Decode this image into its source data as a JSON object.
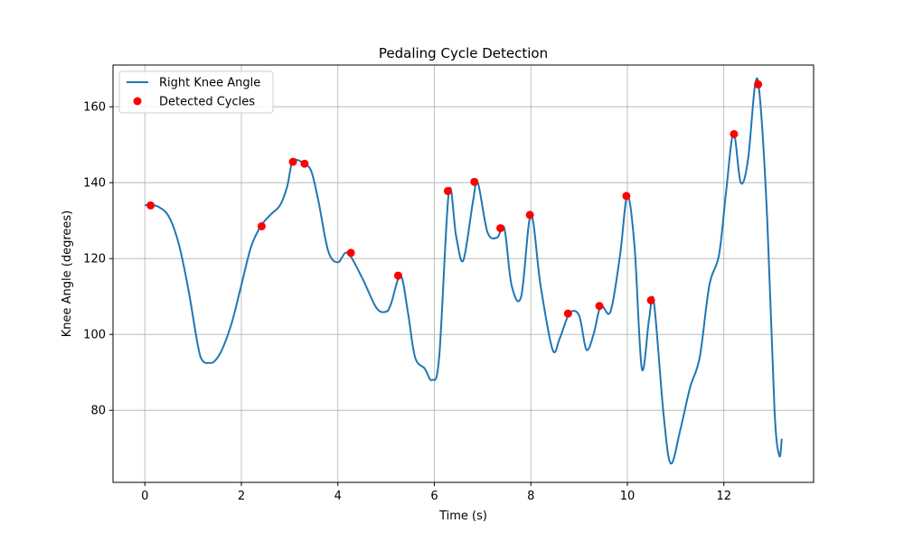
{
  "chart_data": {
    "type": "line",
    "title": "Pedaling Cycle Detection",
    "xlabel": "Time (s)",
    "ylabel": "Knee Angle (degrees)",
    "xlim": [
      -0.66,
      13.86
    ],
    "ylim": [
      61.0,
      171.0
    ],
    "xticks": [
      0,
      2,
      4,
      6,
      8,
      10,
      12
    ],
    "yticks": [
      80,
      100,
      120,
      140,
      160
    ],
    "grid": true,
    "legend_position": "upper-left",
    "series": [
      {
        "name": "Right Knee Angle",
        "kind": "line",
        "color": "#1f77b4",
        "x": [
          0.0,
          0.1,
          0.3,
          0.5,
          0.7,
          0.9,
          1.1,
          1.2,
          1.35,
          1.45,
          1.6,
          1.8,
          2.0,
          2.2,
          2.4,
          2.6,
          2.8,
          2.95,
          3.05,
          3.15,
          3.3,
          3.45,
          3.6,
          3.8,
          4.0,
          4.2,
          4.5,
          4.8,
          5.0,
          5.1,
          5.3,
          5.45,
          5.6,
          5.8,
          5.95,
          6.1,
          6.3,
          6.45,
          6.6,
          6.8,
          6.9,
          7.1,
          7.3,
          7.45,
          7.6,
          7.8,
          8.0,
          8.2,
          8.45,
          8.6,
          8.8,
          9.0,
          9.15,
          9.3,
          9.45,
          9.65,
          9.85,
          10.0,
          10.15,
          10.3,
          10.45,
          10.55,
          10.75,
          10.9,
          11.1,
          11.3,
          11.5,
          11.7,
          11.9,
          12.05,
          12.2,
          12.35,
          12.5,
          12.65,
          12.75,
          12.9,
          13.05,
          13.15,
          13.2
        ],
        "y": [
          134.0,
          134.2,
          133.5,
          131.0,
          124.0,
          112.0,
          97.0,
          93.0,
          92.5,
          93.0,
          96.0,
          103.0,
          113.0,
          123.0,
          128.5,
          131.5,
          134.0,
          139.0,
          145.5,
          146.0,
          145.0,
          143.0,
          135.0,
          122.0,
          119.0,
          121.5,
          115.0,
          107.0,
          106.0,
          108.0,
          115.5,
          106.0,
          94.0,
          91.0,
          88.0,
          94.0,
          137.5,
          126.0,
          119.5,
          135.0,
          140.0,
          127.0,
          125.5,
          128.0,
          113.0,
          110.0,
          131.5,
          113.0,
          96.0,
          99.0,
          105.5,
          105.0,
          96.0,
          100.0,
          107.5,
          106.0,
          121.0,
          136.5,
          123.0,
          91.0,
          104.0,
          108.5,
          79.0,
          66.0,
          75.0,
          86.0,
          94.0,
          113.0,
          121.0,
          138.0,
          153.0,
          140.0,
          146.0,
          166.0,
          162.0,
          130.0,
          80.0,
          68.0,
          72.5
        ]
      },
      {
        "name": "Detected Cycles",
        "kind": "scatter",
        "color": "#ff0000",
        "x": [
          0.12,
          2.42,
          3.07,
          3.31,
          4.27,
          5.25,
          6.28,
          6.83,
          7.37,
          7.98,
          8.77,
          9.42,
          9.98,
          10.49,
          12.21,
          12.71
        ],
        "y": [
          134.0,
          128.5,
          145.5,
          145.0,
          121.5,
          115.5,
          137.8,
          140.2,
          128.0,
          131.5,
          105.5,
          107.5,
          136.5,
          109.0,
          152.8,
          165.9
        ]
      }
    ]
  }
}
